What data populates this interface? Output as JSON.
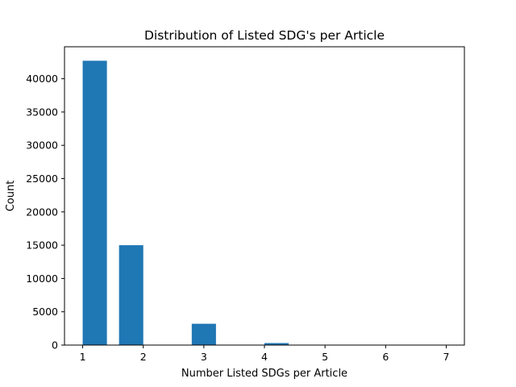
{
  "chart_data": {
    "type": "bar",
    "title": "Distribution of Listed SDG's per Article",
    "xlabel": "Number Listed SDGs per Article",
    "ylabel": "Count",
    "x": [
      1.2,
      1.8,
      3.0,
      4.2,
      4.8,
      6.0,
      7.2
    ],
    "values": [
      42700,
      15000,
      3200,
      300,
      0,
      0,
      0
    ],
    "bin_width": 0.4,
    "xlim": [
      0.7,
      7.3
    ],
    "ylim": [
      0,
      44800
    ],
    "xticks": [
      1,
      2,
      3,
      4,
      5,
      6,
      7
    ],
    "yticks": [
      0,
      5000,
      10000,
      15000,
      20000,
      25000,
      30000,
      35000,
      40000
    ],
    "grid": false,
    "bar_color": "#1f77b4"
  }
}
